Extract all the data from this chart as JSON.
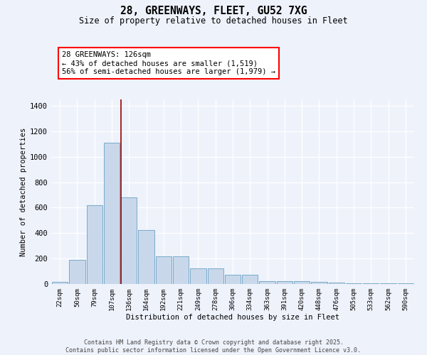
{
  "title_line1": "28, GREENWAYS, FLEET, GU52 7XG",
  "title_line2": "Size of property relative to detached houses in Fleet",
  "xlabel": "Distribution of detached houses by size in Fleet",
  "ylabel": "Number of detached properties",
  "categories": [
    "22sqm",
    "50sqm",
    "79sqm",
    "107sqm",
    "136sqm",
    "164sqm",
    "192sqm",
    "221sqm",
    "249sqm",
    "278sqm",
    "306sqm",
    "334sqm",
    "363sqm",
    "391sqm",
    "420sqm",
    "448sqm",
    "476sqm",
    "505sqm",
    "533sqm",
    "562sqm",
    "590sqm"
  ],
  "values": [
    15,
    190,
    620,
    1110,
    680,
    425,
    220,
    215,
    125,
    125,
    75,
    75,
    25,
    25,
    20,
    15,
    10,
    5,
    5,
    5,
    5
  ],
  "bar_color": "#c8d8ea",
  "bar_edge_color": "#7aaaca",
  "ylim": [
    0,
    1450
  ],
  "yticks": [
    0,
    200,
    400,
    600,
    800,
    1000,
    1200,
    1400
  ],
  "red_line_x": 3.55,
  "annotation_text": "28 GREENWAYS: 126sqm\n← 43% of detached houses are smaller (1,519)\n56% of semi-detached houses are larger (1,979) →",
  "background_color": "#eef2fb",
  "grid_color": "#ffffff",
  "footer_line1": "Contains HM Land Registry data © Crown copyright and database right 2025.",
  "footer_line2": "Contains public sector information licensed under the Open Government Licence v3.0."
}
